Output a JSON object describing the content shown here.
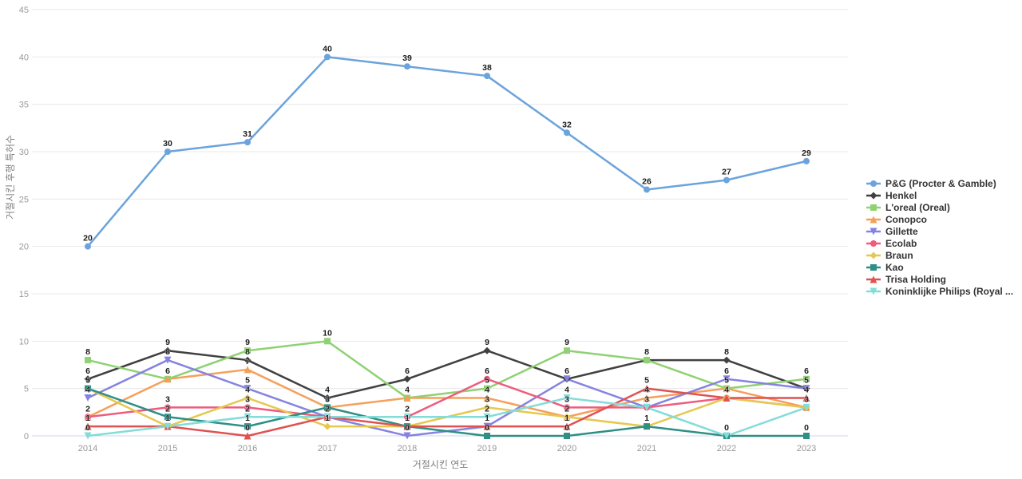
{
  "chart_data": {
    "type": "line",
    "title": "",
    "xlabel": "거절시킨 연도",
    "ylabel": "거절시킨 후행 특허수",
    "x": [
      2014,
      2015,
      2016,
      2017,
      2018,
      2019,
      2020,
      2021,
      2022,
      2023
    ],
    "ylim": [
      0,
      45
    ],
    "yticks": [
      0,
      5,
      10,
      15,
      20,
      25,
      30,
      35,
      40,
      45
    ],
    "grid": true,
    "legend_position": "right",
    "series": [
      {
        "name": "P&G (Procter & Gamble)",
        "color": "#6ba3dc",
        "marker": "circle",
        "values": [
          20,
          30,
          31,
          40,
          39,
          38,
          32,
          26,
          27,
          29
        ]
      },
      {
        "name": "Henkel",
        "color": "#404040",
        "marker": "diamond",
        "values": [
          6,
          9,
          8,
          4,
          6,
          9,
          6,
          8,
          8,
          5
        ]
      },
      {
        "name": "L'oreal (Oreal)",
        "color": "#8fd173",
        "marker": "square",
        "values": [
          8,
          6,
          9,
          10,
          4,
          5,
          9,
          8,
          5,
          6
        ]
      },
      {
        "name": "Conopco",
        "color": "#f5a05a",
        "marker": "triangle-up",
        "values": [
          2,
          6,
          7,
          3,
          4,
          4,
          2,
          4,
          5,
          3
        ]
      },
      {
        "name": "Gillette",
        "color": "#8583e1",
        "marker": "triangle-down",
        "values": [
          4,
          8,
          5,
          2,
          0,
          1,
          6,
          3,
          6,
          5
        ]
      },
      {
        "name": "Ecolab",
        "color": "#ee5c7e",
        "marker": "circle",
        "values": [
          2,
          3,
          3,
          2,
          2,
          6,
          3,
          3,
          4,
          3
        ]
      },
      {
        "name": "Braun",
        "color": "#e6c84f",
        "marker": "diamond",
        "values": [
          5,
          1,
          4,
          1,
          1,
          3,
          2,
          1,
          4,
          3
        ]
      },
      {
        "name": "Kao",
        "color": "#2e8f86",
        "marker": "square",
        "values": [
          5,
          2,
          1,
          3,
          1,
          0,
          0,
          1,
          0,
          0
        ]
      },
      {
        "name": "Trisa Holding",
        "color": "#e05252",
        "marker": "triangle-up",
        "values": [
          1,
          1,
          0,
          2,
          1,
          1,
          1,
          5,
          4,
          4
        ]
      },
      {
        "name": "Koninklijke Philips (Royal ...",
        "color": "#84dcd8",
        "marker": "triangle-down",
        "values": [
          0,
          1,
          2,
          2,
          2,
          2,
          4,
          3,
          0,
          3
        ]
      }
    ],
    "colors": {
      "grid": "#e8e8e8",
      "axis_line": "#ccd6eb",
      "tick_text": "#999999",
      "point_label": "#1a1a1a"
    }
  }
}
